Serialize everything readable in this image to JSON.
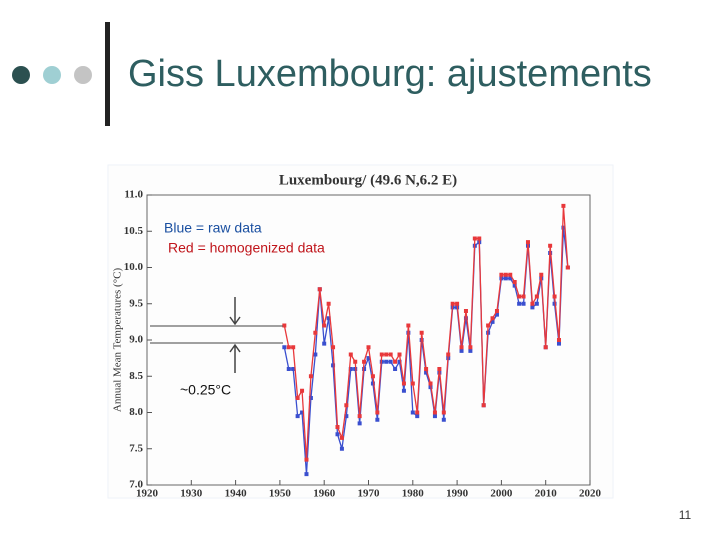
{
  "slide": {
    "title": "Giss Luxembourg: ajustements",
    "page_number": "11"
  },
  "chart_data": {
    "type": "line",
    "title": "Luxembourg/ (49.6 N,6.2 E)",
    "y_label": "Annual Mean Temperatures (°C)",
    "annotations": [
      "Blue = raw data",
      "Red = homogenized data",
      "~0.25°C"
    ],
    "x": [
      1951,
      1952,
      1953,
      1954,
      1955,
      1956,
      1957,
      1958,
      1959,
      1960,
      1961,
      1962,
      1963,
      1964,
      1965,
      1966,
      1967,
      1968,
      1969,
      1970,
      1971,
      1972,
      1973,
      1974,
      1975,
      1976,
      1977,
      1978,
      1979,
      1980,
      1981,
      1982,
      1983,
      1984,
      1985,
      1986,
      1987,
      1988,
      1989,
      1990,
      1991,
      1992,
      1993,
      1994,
      1995,
      1996,
      1997,
      1998,
      1999,
      2000,
      2001,
      2002,
      2003,
      2004,
      2005,
      2006,
      2007,
      2008,
      2009,
      2010,
      2011,
      2012,
      2013,
      2014,
      2015
    ],
    "series": [
      {
        "color": "#3a4fcf",
        "values": [
          8.9,
          8.6,
          8.6,
          7.95,
          8.0,
          7.15,
          8.2,
          8.8,
          9.7,
          8.95,
          9.3,
          8.65,
          7.7,
          7.5,
          7.95,
          8.6,
          8.6,
          7.85,
          8.6,
          8.75,
          8.4,
          7.9,
          8.7,
          8.7,
          8.7,
          8.6,
          8.7,
          8.3,
          9.1,
          8.0,
          7.95,
          9.0,
          8.55,
          8.35,
          7.95,
          8.55,
          7.9,
          8.75,
          9.45,
          9.45,
          8.85,
          9.3,
          8.85,
          10.3,
          10.35,
          8.1,
          9.1,
          9.25,
          9.35,
          9.85,
          9.85,
          9.85,
          9.75,
          9.5,
          9.5,
          10.3,
          9.45,
          9.5,
          9.85,
          8.9,
          10.2,
          9.5,
          8.95,
          10.55,
          10.0
        ]
      },
      {
        "color": "#e8383b",
        "values": [
          9.2,
          8.9,
          8.9,
          8.2,
          8.3,
          7.35,
          8.5,
          9.1,
          9.7,
          9.2,
          9.5,
          8.9,
          7.8,
          7.65,
          8.1,
          8.8,
          8.7,
          7.95,
          8.7,
          8.9,
          8.5,
          8.0,
          8.8,
          8.8,
          8.8,
          8.7,
          8.8,
          8.4,
          9.2,
          8.4,
          8.0,
          9.1,
          8.6,
          8.4,
          8.0,
          8.6,
          8.0,
          8.8,
          9.5,
          9.5,
          8.9,
          9.4,
          8.9,
          10.4,
          10.4,
          8.1,
          9.2,
          9.3,
          9.4,
          9.9,
          9.9,
          9.9,
          9.8,
          9.6,
          9.6,
          10.35,
          9.5,
          9.6,
          9.9,
          8.9,
          10.3,
          9.6,
          9.0,
          10.85,
          10.0
        ]
      }
    ],
    "xlim": [
      1920,
      2020
    ],
    "xticks": [
      1920,
      1930,
      1940,
      1950,
      1960,
      1970,
      1980,
      1990,
      2000,
      2010,
      2020
    ],
    "ylim": [
      7,
      11
    ],
    "yticks": [
      {
        "value": 7,
        "label": "7.0"
      },
      7.5,
      {
        "value": 8,
        "label": "8.0"
      },
      8.5,
      {
        "value": 9,
        "label": "9.0"
      },
      9.5,
      {
        "value": 10,
        "label": "10.0"
      },
      10.5,
      {
        "value": 11,
        "label": "11.0"
      }
    ]
  }
}
